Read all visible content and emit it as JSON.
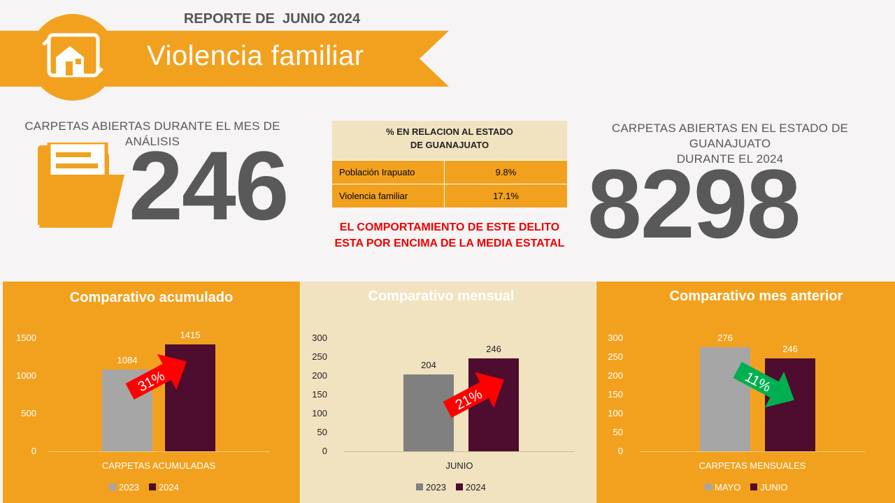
{
  "header": {
    "report_title": "REPORTE DE  JUNIO 2024",
    "banner_title": "Violencia familiar",
    "icon": "house-document-icon"
  },
  "kpi_left": {
    "label": "CARPETAS ABIERTAS DURANTE EL MES DE ANÁLISIS",
    "value": "246",
    "icon": "folder-icon"
  },
  "kpi_right": {
    "label_line1": "CARPETAS ABIERTAS EN EL ESTADO DE GUANAJUATO",
    "label_line2": "DURANTE EL 2024",
    "value": "8298"
  },
  "relation_table": {
    "header_line1": "% EN RELACION AL ESTADO",
    "header_line2": "DE GUANAJUATO",
    "rows": [
      {
        "label": "Población Irapuato",
        "value": "9.8%"
      },
      {
        "label": "Violencia familiar",
        "value": "17.1%"
      }
    ]
  },
  "note": {
    "line1": "EL COMPORTAMIENTO DE ESTE DELITO",
    "line2": "ESTA POR ENCIMA DE LA MEDIA ESTATAL"
  },
  "colors": {
    "orange": "#f2a11f",
    "cream": "#f1e3c0",
    "maroon": "#4e0c2e",
    "gray_light": "#a6a6a6",
    "gray_dark": "#808080",
    "red": "#ff0000",
    "green": "#00b050"
  },
  "chart_data": [
    {
      "type": "bar",
      "title": "Comparativo acumulado",
      "categories": [
        "CARPETAS ACUMULADAS"
      ],
      "series": [
        {
          "name": "2023",
          "values": [
            1084
          ]
        },
        {
          "name": "2024",
          "values": [
            1415
          ]
        }
      ],
      "ylim": [
        0,
        1500
      ],
      "yticks": [
        0,
        500,
        1000,
        1500
      ],
      "change": "31%",
      "change_direction": "up"
    },
    {
      "type": "bar",
      "title": "Comparativo mensual",
      "categories": [
        "JUNIO"
      ],
      "series": [
        {
          "name": "2023",
          "values": [
            204
          ]
        },
        {
          "name": "2024",
          "values": [
            246
          ]
        }
      ],
      "ylim": [
        0,
        300
      ],
      "yticks": [
        0,
        50,
        100,
        150,
        200,
        250,
        300
      ],
      "change": "21%",
      "change_direction": "up"
    },
    {
      "type": "bar",
      "title": "Comparativo mes anterior",
      "categories": [
        "CARPETAS MENSUALES"
      ],
      "series": [
        {
          "name": "MAYO",
          "values": [
            276
          ]
        },
        {
          "name": "JUNIO",
          "values": [
            246
          ]
        }
      ],
      "ylim": [
        0,
        300
      ],
      "yticks": [
        0,
        50,
        100,
        150,
        200,
        250,
        300
      ],
      "change": "11%",
      "change_direction": "down"
    }
  ]
}
